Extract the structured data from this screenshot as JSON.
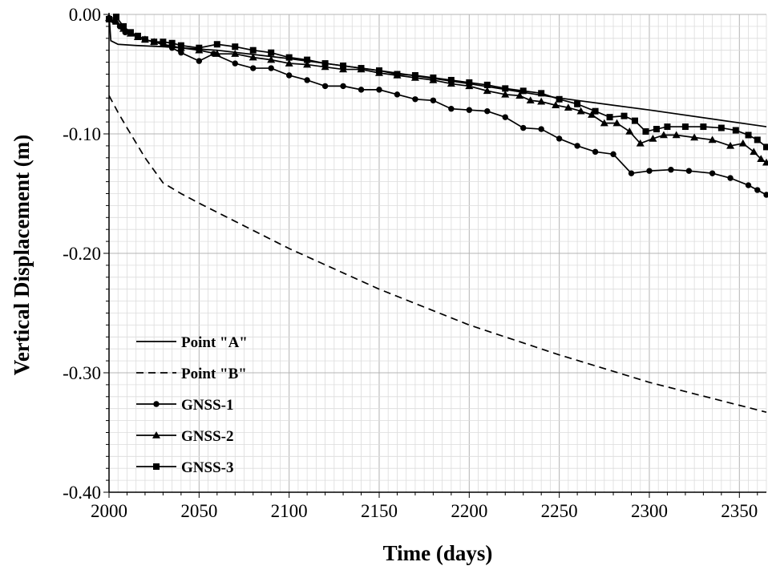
{
  "chart_data": {
    "type": "line",
    "title": "",
    "xlabel": "Time (days)",
    "ylabel": "Vertical Displacement (m)",
    "xlim": [
      2000,
      2365
    ],
    "ylim": [
      -0.4,
      0.0
    ],
    "x_ticks": [
      2000,
      2050,
      2100,
      2150,
      2200,
      2250,
      2300,
      2350
    ],
    "x_tick_labels": [
      "2000",
      "2050",
      "2100",
      "2150",
      "2200",
      "2250",
      "2300",
      "2350"
    ],
    "y_ticks": [
      0.0,
      -0.1,
      -0.2,
      -0.3,
      -0.4
    ],
    "y_tick_labels": [
      "0.00",
      "-0.10",
      "-0.20",
      "-0.30",
      "-0.40"
    ],
    "grid": true,
    "legend_position": "bottom-left",
    "series": [
      {
        "name": "Point \"A\"",
        "style": "solid",
        "marker": "none",
        "color": "#000000",
        "points": [
          [
            2000,
            0.0
          ],
          [
            2001,
            -0.022
          ],
          [
            2005,
            -0.025
          ],
          [
            2015,
            -0.026
          ],
          [
            2030,
            -0.027
          ],
          [
            2060,
            -0.03
          ],
          [
            2100,
            -0.037
          ],
          [
            2150,
            -0.047
          ],
          [
            2200,
            -0.058
          ],
          [
            2250,
            -0.07
          ],
          [
            2300,
            -0.08
          ],
          [
            2365,
            -0.094
          ]
        ]
      },
      {
        "name": "Point \"B\"",
        "style": "dashed",
        "marker": "none",
        "color": "#000000",
        "points": [
          [
            2000,
            -0.068
          ],
          [
            2005,
            -0.082
          ],
          [
            2010,
            -0.095
          ],
          [
            2020,
            -0.12
          ],
          [
            2030,
            -0.141
          ],
          [
            2040,
            -0.15
          ],
          [
            2050,
            -0.158
          ],
          [
            2100,
            -0.196
          ],
          [
            2150,
            -0.23
          ],
          [
            2200,
            -0.26
          ],
          [
            2250,
            -0.285
          ],
          [
            2300,
            -0.308
          ],
          [
            2365,
            -0.333
          ]
        ]
      },
      {
        "name": "GNSS-1",
        "style": "solid",
        "marker": "circle",
        "color": "#000000",
        "points": [
          [
            2000,
            -0.003
          ],
          [
            2003,
            -0.006
          ],
          [
            2006,
            -0.01
          ],
          [
            2009,
            -0.015
          ],
          [
            2012,
            -0.016
          ],
          [
            2016,
            -0.019
          ],
          [
            2020,
            -0.021
          ],
          [
            2025,
            -0.023
          ],
          [
            2030,
            -0.025
          ],
          [
            2035,
            -0.028
          ],
          [
            2040,
            -0.032
          ],
          [
            2050,
            -0.039
          ],
          [
            2058,
            -0.033
          ],
          [
            2070,
            -0.041
          ],
          [
            2080,
            -0.045
          ],
          [
            2090,
            -0.045
          ],
          [
            2100,
            -0.051
          ],
          [
            2110,
            -0.055
          ],
          [
            2120,
            -0.06
          ],
          [
            2130,
            -0.06
          ],
          [
            2140,
            -0.063
          ],
          [
            2150,
            -0.063
          ],
          [
            2160,
            -0.067
          ],
          [
            2170,
            -0.071
          ],
          [
            2180,
            -0.072
          ],
          [
            2190,
            -0.079
          ],
          [
            2200,
            -0.08
          ],
          [
            2210,
            -0.081
          ],
          [
            2220,
            -0.086
          ],
          [
            2230,
            -0.095
          ],
          [
            2240,
            -0.096
          ],
          [
            2250,
            -0.104
          ],
          [
            2260,
            -0.11
          ],
          [
            2270,
            -0.115
          ],
          [
            2280,
            -0.117
          ],
          [
            2290,
            -0.133
          ],
          [
            2300,
            -0.131
          ],
          [
            2312,
            -0.13
          ],
          [
            2322,
            -0.131
          ],
          [
            2335,
            -0.133
          ],
          [
            2345,
            -0.137
          ],
          [
            2355,
            -0.143
          ],
          [
            2360,
            -0.147
          ],
          [
            2365,
            -0.151
          ]
        ]
      },
      {
        "name": "GNSS-2",
        "style": "solid",
        "marker": "triangle",
        "color": "#000000",
        "points": [
          [
            2000,
            -0.003
          ],
          [
            2004,
            -0.006
          ],
          [
            2008,
            -0.012
          ],
          [
            2012,
            -0.016
          ],
          [
            2016,
            -0.019
          ],
          [
            2020,
            -0.021
          ],
          [
            2025,
            -0.023
          ],
          [
            2030,
            -0.025
          ],
          [
            2040,
            -0.028
          ],
          [
            2050,
            -0.03
          ],
          [
            2060,
            -0.033
          ],
          [
            2070,
            -0.033
          ],
          [
            2080,
            -0.036
          ],
          [
            2090,
            -0.038
          ],
          [
            2100,
            -0.041
          ],
          [
            2110,
            -0.042
          ],
          [
            2120,
            -0.044
          ],
          [
            2130,
            -0.046
          ],
          [
            2140,
            -0.046
          ],
          [
            2150,
            -0.049
          ],
          [
            2160,
            -0.051
          ],
          [
            2170,
            -0.053
          ],
          [
            2180,
            -0.055
          ],
          [
            2190,
            -0.058
          ],
          [
            2200,
            -0.06
          ],
          [
            2210,
            -0.064
          ],
          [
            2220,
            -0.067
          ],
          [
            2228,
            -0.068
          ],
          [
            2234,
            -0.072
          ],
          [
            2240,
            -0.073
          ],
          [
            2248,
            -0.076
          ],
          [
            2255,
            -0.078
          ],
          [
            2262,
            -0.081
          ],
          [
            2268,
            -0.084
          ],
          [
            2275,
            -0.091
          ],
          [
            2282,
            -0.091
          ],
          [
            2289,
            -0.098
          ],
          [
            2295,
            -0.108
          ],
          [
            2302,
            -0.104
          ],
          [
            2308,
            -0.101
          ],
          [
            2315,
            -0.101
          ],
          [
            2325,
            -0.103
          ],
          [
            2335,
            -0.105
          ],
          [
            2345,
            -0.11
          ],
          [
            2352,
            -0.108
          ],
          [
            2358,
            -0.115
          ],
          [
            2362,
            -0.121
          ],
          [
            2365,
            -0.124
          ]
        ]
      },
      {
        "name": "GNSS-3",
        "style": "solid",
        "marker": "square",
        "color": "#000000",
        "points": [
          [
            2000,
            -0.004
          ],
          [
            2004,
            -0.002
          ],
          [
            2008,
            -0.01
          ],
          [
            2012,
            -0.015
          ],
          [
            2016,
            -0.018
          ],
          [
            2020,
            -0.021
          ],
          [
            2025,
            -0.023
          ],
          [
            2030,
            -0.023
          ],
          [
            2035,
            -0.024
          ],
          [
            2040,
            -0.026
          ],
          [
            2050,
            -0.028
          ],
          [
            2060,
            -0.025
          ],
          [
            2070,
            -0.027
          ],
          [
            2080,
            -0.03
          ],
          [
            2090,
            -0.032
          ],
          [
            2100,
            -0.036
          ],
          [
            2110,
            -0.038
          ],
          [
            2120,
            -0.041
          ],
          [
            2130,
            -0.043
          ],
          [
            2140,
            -0.045
          ],
          [
            2150,
            -0.047
          ],
          [
            2160,
            -0.05
          ],
          [
            2170,
            -0.051
          ],
          [
            2180,
            -0.053
          ],
          [
            2190,
            -0.055
          ],
          [
            2200,
            -0.057
          ],
          [
            2210,
            -0.059
          ],
          [
            2220,
            -0.062
          ],
          [
            2230,
            -0.064
          ],
          [
            2240,
            -0.066
          ],
          [
            2250,
            -0.071
          ],
          [
            2260,
            -0.075
          ],
          [
            2270,
            -0.081
          ],
          [
            2278,
            -0.086
          ],
          [
            2286,
            -0.085
          ],
          [
            2292,
            -0.089
          ],
          [
            2298,
            -0.098
          ],
          [
            2304,
            -0.096
          ],
          [
            2310,
            -0.094
          ],
          [
            2320,
            -0.094
          ],
          [
            2330,
            -0.094
          ],
          [
            2340,
            -0.095
          ],
          [
            2348,
            -0.097
          ],
          [
            2355,
            -0.101
          ],
          [
            2360,
            -0.105
          ],
          [
            2365,
            -0.111
          ]
        ]
      }
    ]
  }
}
